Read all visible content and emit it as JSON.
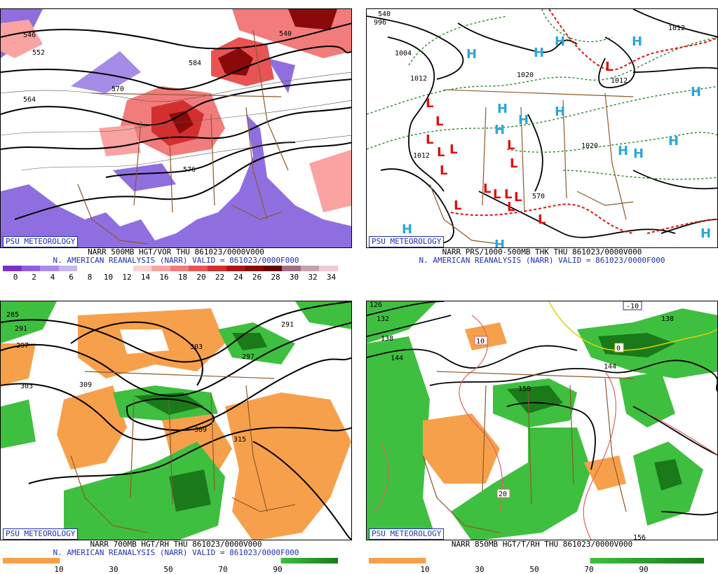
{
  "panels": [
    {
      "id": "500mb",
      "badge": "PSU METEOROLOGY",
      "caption1": "NARR 500MB HGT/VOR THU 861023/0000V000",
      "caption2": "N. AMERICAN REANALYSIS (NARR) VALID = 861023/0000F000",
      "contour_labels": [
        "546",
        "552",
        "564",
        "570",
        "576",
        "584",
        "540"
      ],
      "colorbar_labels": [
        "0",
        "2",
        "4",
        "6",
        "8",
        "10",
        "12",
        "14",
        "16",
        "18",
        "20",
        "22",
        "24",
        "26",
        "28",
        "30",
        "32",
        "34"
      ],
      "colorbar_colors": [
        "#7b2fcf",
        "#8f5ee0",
        "#a88ce8",
        "#c7b8f0",
        "#ffffff",
        "#ffffff",
        "#ffffff",
        "#ffd0d0",
        "#f9a3a3",
        "#f27b7b",
        "#e85454",
        "#d42f2f",
        "#b01515",
        "#8a0a0a",
        "#6a0000",
        "#a07080",
        "#c7a0b0",
        "#f0c8d8"
      ]
    },
    {
      "id": "thk",
      "badge": "PSU METEOROLOGY",
      "caption1": "NARR PRS/1000-500MB THK THU 861023/0000V000",
      "caption2": "N. AMERICAN REANALYSIS (NARR) VALID = 861023/0000F000",
      "contour_labels": [
        "996",
        "1004",
        "1012",
        "1020",
        "1012",
        "1012",
        "1020",
        "1012",
        "540",
        "570"
      ],
      "highs": "H",
      "lows": "L"
    },
    {
      "id": "700mb",
      "badge": "PSU METEOROLOGY",
      "caption1": "NARR 700MB HGT/RH THU 861023/0000V000",
      "caption2": "N. AMERICAN REANALYSIS (NARR) VALID = 861023/0000F000",
      "contour_labels": [
        "285",
        "291",
        "297",
        "303",
        "309",
        "309",
        "315",
        "303",
        "297",
        "291"
      ],
      "colorbar_labels": [
        "10",
        "30",
        "50",
        "70",
        "90"
      ]
    },
    {
      "id": "850mb",
      "badge": "PSU METEOROLOGY",
      "caption1": "NARR 850MB HGT/T/RH THU 861023/0000V000",
      "contour_labels": [
        "126",
        "132",
        "138",
        "144",
        "150",
        "144",
        "138",
        "156",
        "-10",
        "0",
        "10",
        "20"
      ],
      "colorbar_labels": [
        "10",
        "30",
        "50",
        "70",
        "90"
      ]
    }
  ]
}
